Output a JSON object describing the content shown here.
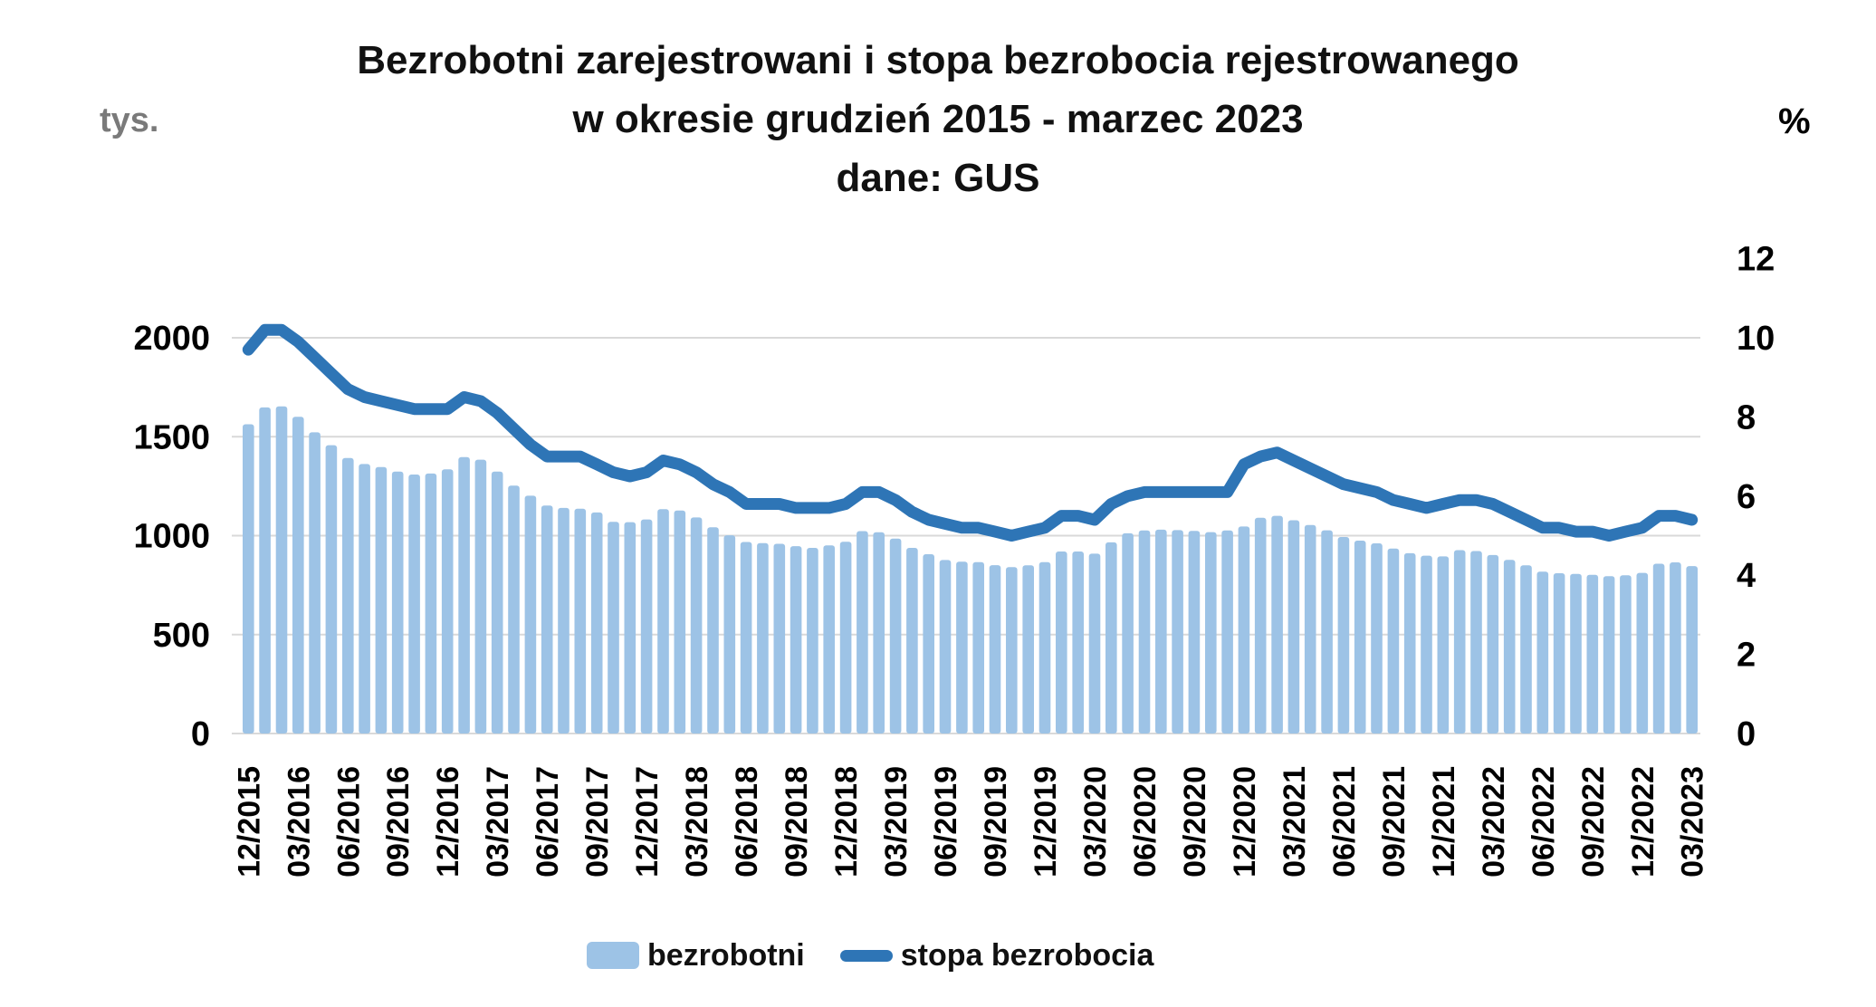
{
  "chart_data": {
    "type": "bar+line",
    "title_lines": {
      "line1": "Bezrobotni zarejestrowani i stopa bezrobocia rejestrowanego",
      "line2": "w okresie grudzień 2015 - marzec 2023",
      "line3": "dane: GUS"
    },
    "months": [
      "12/2015",
      "01/2016",
      "02/2016",
      "03/2016",
      "04/2016",
      "05/2016",
      "06/2016",
      "07/2016",
      "08/2016",
      "09/2016",
      "10/2016",
      "11/2016",
      "12/2016",
      "01/2017",
      "02/2017",
      "03/2017",
      "04/2017",
      "05/2017",
      "06/2017",
      "07/2017",
      "08/2017",
      "09/2017",
      "10/2017",
      "11/2017",
      "12/2017",
      "01/2018",
      "02/2018",
      "03/2018",
      "04/2018",
      "05/2018",
      "06/2018",
      "07/2018",
      "08/2018",
      "09/2018",
      "10/2018",
      "11/2018",
      "12/2018",
      "01/2019",
      "02/2019",
      "03/2019",
      "04/2019",
      "05/2019",
      "06/2019",
      "07/2019",
      "08/2019",
      "09/2019",
      "10/2019",
      "11/2019",
      "12/2019",
      "01/2020",
      "02/2020",
      "03/2020",
      "04/2020",
      "05/2020",
      "06/2020",
      "07/2020",
      "08/2020",
      "09/2020",
      "10/2020",
      "11/2020",
      "12/2020",
      "01/2021",
      "02/2021",
      "03/2021",
      "04/2021",
      "05/2021",
      "06/2021",
      "07/2021",
      "08/2021",
      "09/2021",
      "10/2021",
      "11/2021",
      "12/2021",
      "01/2022",
      "02/2022",
      "03/2022",
      "04/2022",
      "05/2022",
      "06/2022",
      "07/2022",
      "08/2022",
      "09/2022",
      "10/2022",
      "11/2022",
      "12/2022",
      "01/2023",
      "02/2023",
      "03/2023"
    ],
    "x_tick_every": 3,
    "series": [
      {
        "name": "bezrobotni",
        "type": "bar",
        "axis": "left",
        "unit": "tys.",
        "color": "#9DC3E6",
        "values": [
          1563,
          1648,
          1653,
          1601,
          1522,
          1457,
          1392,
          1362,
          1347,
          1324,
          1309,
          1314,
          1335,
          1397,
          1384,
          1324,
          1253,
          1202,
          1152,
          1140,
          1136,
          1117,
          1070,
          1068,
          1082,
          1134,
          1127,
          1092,
          1042,
          1002,
          968,
          962,
          959,
          947,
          938,
          951,
          969,
          1023,
          1017,
          985,
          938,
          906,
          877,
          868,
          866,
          851,
          841,
          850,
          866,
          920,
          920,
          909,
          966,
          1012,
          1026,
          1030,
          1028,
          1024,
          1018,
          1026,
          1046,
          1090,
          1100,
          1078,
          1054,
          1027,
          993,
          975,
          961,
          935,
          911,
          899,
          895,
          927,
          922,
          902,
          878,
          850,
          818,
          810,
          807,
          802,
          795,
          800,
          812,
          858,
          865,
          846
        ]
      },
      {
        "name": "stopa bezrobocia",
        "type": "line",
        "axis": "right",
        "unit": "%",
        "color": "#2E75B6",
        "values": [
          9.7,
          10.2,
          10.2,
          9.9,
          9.5,
          9.1,
          8.7,
          8.5,
          8.4,
          8.3,
          8.2,
          8.2,
          8.2,
          8.5,
          8.4,
          8.1,
          7.7,
          7.3,
          7.0,
          7.0,
          7.0,
          6.8,
          6.6,
          6.5,
          6.6,
          6.9,
          6.8,
          6.6,
          6.3,
          6.1,
          5.8,
          5.8,
          5.8,
          5.7,
          5.7,
          5.7,
          5.8,
          6.1,
          6.1,
          5.9,
          5.6,
          5.4,
          5.3,
          5.2,
          5.2,
          5.1,
          5.0,
          5.1,
          5.2,
          5.5,
          5.5,
          5.4,
          5.8,
          6.0,
          6.1,
          6.1,
          6.1,
          6.1,
          6.1,
          6.1,
          6.8,
          7.0,
          7.1,
          6.9,
          6.7,
          6.5,
          6.3,
          6.2,
          6.1,
          5.9,
          5.8,
          5.7,
          5.8,
          5.9,
          5.9,
          5.8,
          5.6,
          5.4,
          5.2,
          5.2,
          5.1,
          5.1,
          5.0,
          5.1,
          5.2,
          5.5,
          5.5,
          5.4
        ]
      }
    ],
    "left_axis": {
      "unit": "tys.",
      "ticks": [
        0,
        500,
        1000,
        1500,
        2000
      ],
      "min": 0,
      "max": 2400
    },
    "right_axis": {
      "unit": "%",
      "ticks": [
        0,
        2,
        4,
        6,
        8,
        10,
        12
      ],
      "min": 0,
      "max": 12
    },
    "grid": "horizontal gridlines at left-axis ticks",
    "grid_color": "#D9D9D9",
    "legend_position": "bottom-center"
  }
}
